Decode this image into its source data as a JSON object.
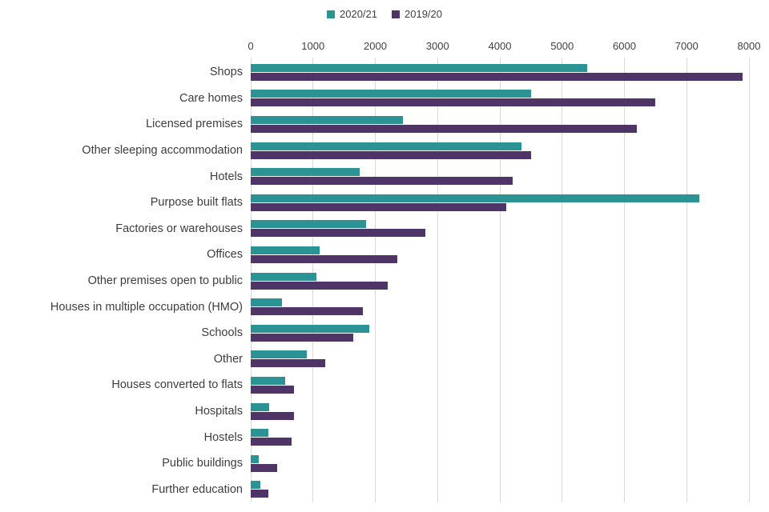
{
  "chart_data": {
    "type": "bar",
    "orientation": "horizontal",
    "title": "",
    "legend_position": "top",
    "grid": true,
    "xlabel": "",
    "ylabel": "",
    "xlim": [
      0,
      8000
    ],
    "xticks": [
      0,
      1000,
      2000,
      3000,
      4000,
      5000,
      6000,
      7000,
      8000
    ],
    "categories": [
      "Shops",
      "Care homes",
      "Licensed premises",
      "Other sleeping accommodation",
      "Hotels",
      "Purpose built flats",
      "Factories or warehouses",
      "Offices",
      "Other premises open to public",
      "Houses in multiple occupation (HMO)",
      "Schools",
      "Other",
      "Houses converted to flats",
      "Hospitals",
      "Hostels",
      "Public buildings",
      "Further education"
    ],
    "series": [
      {
        "name": "2020/21",
        "color": "#2b9393",
        "values": [
          5400,
          4500,
          2450,
          4350,
          1750,
          7200,
          1850,
          1100,
          1050,
          500,
          1900,
          900,
          550,
          300,
          280,
          130,
          150
        ]
      },
      {
        "name": "2019/20",
        "color": "#4f3468",
        "values": [
          7900,
          6500,
          6200,
          4500,
          4200,
          4100,
          2800,
          2350,
          2200,
          1800,
          1650,
          1200,
          700,
          700,
          650,
          430,
          280
        ]
      }
    ],
    "colors": {
      "gridline": "#d9d9d9",
      "text": "#404040",
      "background": "#ffffff"
    }
  }
}
